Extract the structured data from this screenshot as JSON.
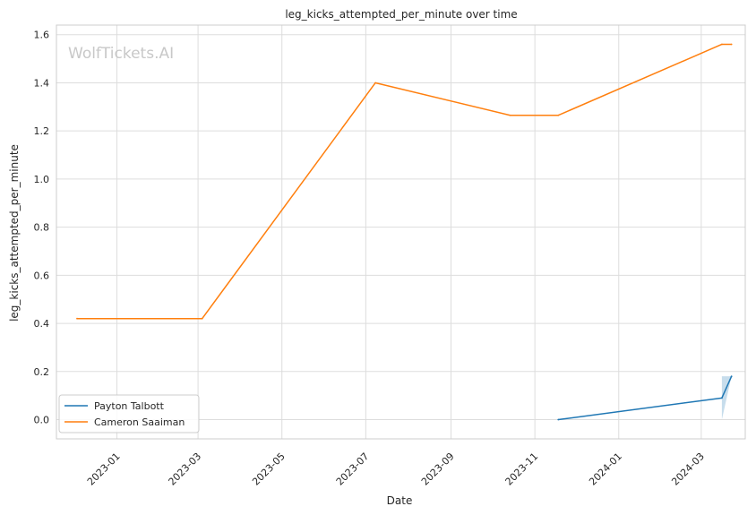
{
  "watermark": "WolfTickets.AI",
  "chart_data": {
    "type": "line",
    "title": "leg_kicks_attempted_per_minute over time",
    "xlabel": "Date",
    "ylabel": "leg_kicks_attempted_per_minute",
    "x_ticks": [
      "2023-01",
      "2023-03",
      "2023-05",
      "2023-07",
      "2023-09",
      "2023-11",
      "2024-01",
      "2024-03"
    ],
    "y_ticks": [
      "0.0",
      "0.2",
      "0.4",
      "0.6",
      "0.8",
      "1.0",
      "1.2",
      "1.4",
      "1.6"
    ],
    "xlim": [
      "2022-11-18",
      "2024-04-02"
    ],
    "ylim": [
      -0.08,
      1.64
    ],
    "grid": true,
    "legend_position": "lower-left",
    "series": [
      {
        "name": "Payton Talbott",
        "color": "#1f77b4",
        "points": [
          {
            "x": "2023-11-18",
            "y": 0.0
          },
          {
            "x": "2024-03-16",
            "y": 0.09
          },
          {
            "x": "2024-03-23",
            "y": 0.18
          }
        ],
        "band": [
          {
            "x": "2024-03-16",
            "low": 0.0,
            "high": 0.18
          },
          {
            "x": "2024-03-23",
            "low": 0.18,
            "high": 0.18
          }
        ]
      },
      {
        "name": "Cameron Saaiman",
        "color": "#ff7f0e",
        "points": [
          {
            "x": "2022-12-03",
            "y": 0.42
          },
          {
            "x": "2023-03-04",
            "y": 0.42
          },
          {
            "x": "2023-07-08",
            "y": 1.4
          },
          {
            "x": "2023-10-14",
            "y": 1.265
          },
          {
            "x": "2023-11-18",
            "y": 1.265
          },
          {
            "x": "2024-03-16",
            "y": 1.56
          },
          {
            "x": "2024-03-23",
            "y": 1.56
          }
        ]
      }
    ]
  }
}
